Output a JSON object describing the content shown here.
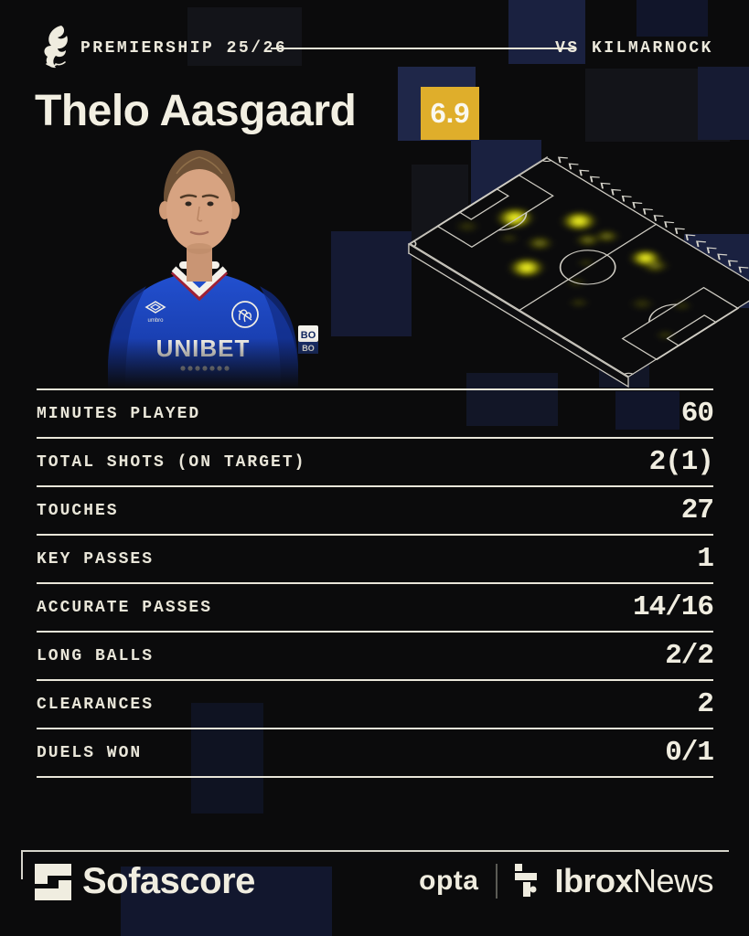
{
  "header": {
    "competition": "PREMIERSHIP 25/26",
    "opponent": "VS KILMARNOCK"
  },
  "player": {
    "name": "Thelo Aasgaard",
    "rating": "6.9",
    "rating_color": "#dfae2b"
  },
  "photo": {
    "sponsor": "UNIBET",
    "brand": "umbro",
    "sleeve_badge_top": "BO",
    "sleeve_badge_bottom": "BO"
  },
  "stats": [
    {
      "label": "MINUTES PLAYED",
      "value": "60"
    },
    {
      "label": "TOTAL SHOTS (ON TARGET)",
      "value": "2(1)"
    },
    {
      "label": "TOUCHES",
      "value": "27"
    },
    {
      "label": "KEY PASSES",
      "value": "1"
    },
    {
      "label": "ACCURATE PASSES",
      "value": "14/16"
    },
    {
      "label": "LONG BALLS",
      "value": "2/2"
    },
    {
      "label": "CLEARANCES",
      "value": "2"
    },
    {
      "label": "DUELS WON",
      "value": "0/1"
    }
  ],
  "footer": {
    "sofascore": "Sofascore",
    "opta": "opta",
    "ibrox_bold": "Ibrox",
    "ibrox_light": "News"
  },
  "colors": {
    "background": "#0b0b0c",
    "cream": "#efecdf",
    "gold": "#dfae2b",
    "navy_block": "#1a2140",
    "heat_yellow": "#f0f00c"
  },
  "chart_data": [
    {
      "type": "table",
      "title": "Player match stats",
      "categories": [
        "MINUTES PLAYED",
        "TOTAL SHOTS (ON TARGET)",
        "TOUCHES",
        "KEY PASSES",
        "ACCURATE PASSES",
        "LONG BALLS",
        "CLEARANCES",
        "DUELS WON"
      ],
      "values": [
        "60",
        "2(1)",
        "27",
        "1",
        "14/16",
        "2/2",
        "2",
        "0/1"
      ]
    },
    {
      "type": "heatmap",
      "title": "Touch heatmap on isometric pitch",
      "attack_direction": "chevrons along far touchline point toward upper-left goal",
      "x_range": [
        0,
        100
      ],
      "y_range": [
        0,
        100
      ],
      "points": [
        {
          "x": 15,
          "y": 47,
          "intensity": 1.0,
          "size": 17
        },
        {
          "x": 31,
          "y": 26,
          "intensity": 1.0,
          "size": 16
        },
        {
          "x": 36,
          "y": 72,
          "intensity": 1.0,
          "size": 16
        },
        {
          "x": 60,
          "y": 24,
          "intensity": 1.0,
          "size": 14
        },
        {
          "x": 65,
          "y": 25,
          "intensity": 0.55,
          "size": 12
        },
        {
          "x": 40,
          "y": 34,
          "intensity": 0.55,
          "size": 11
        },
        {
          "x": 30,
          "y": 53,
          "intensity": 0.55,
          "size": 12
        },
        {
          "x": 43,
          "y": 25,
          "intensity": 0.55,
          "size": 11
        },
        {
          "x": 7,
          "y": 69,
          "intensity": 0.3,
          "size": 11
        },
        {
          "x": 53,
          "y": 63,
          "intensity": 0.3,
          "size": 9
        },
        {
          "x": 61,
          "y": 74,
          "intensity": 0.3,
          "size": 9
        },
        {
          "x": 76,
          "y": 52,
          "intensity": 0.3,
          "size": 11
        },
        {
          "x": 86,
          "y": 39,
          "intensity": 0.3,
          "size": 9
        },
        {
          "x": 93,
          "y": 62,
          "intensity": 0.3,
          "size": 9
        },
        {
          "x": 21,
          "y": 61,
          "intensity": 0.3,
          "size": 9
        },
        {
          "x": 48,
          "y": 48,
          "intensity": 0.3,
          "size": 8
        }
      ]
    }
  ]
}
